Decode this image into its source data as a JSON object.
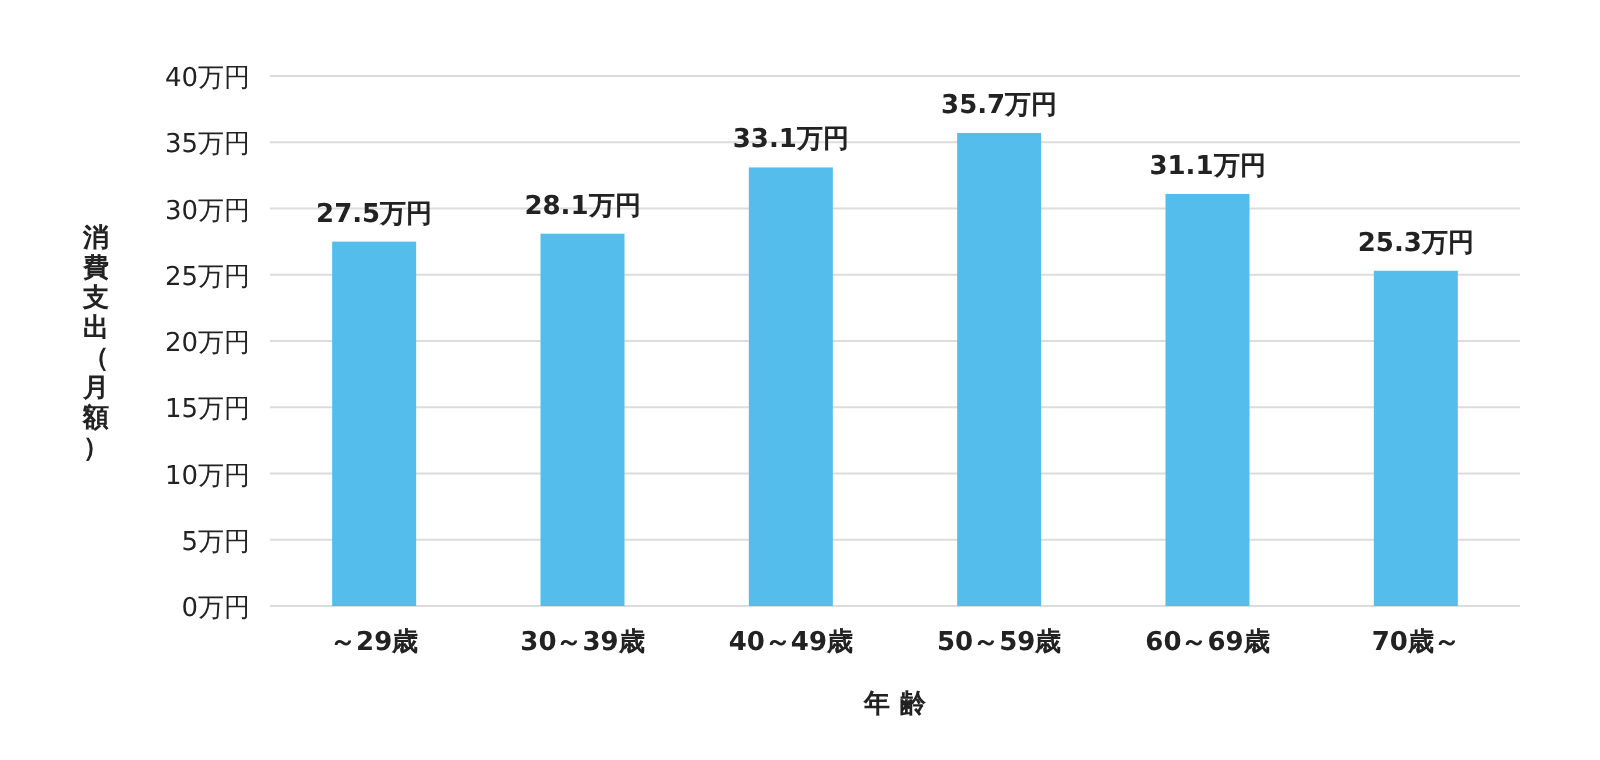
{
  "chart_data": {
    "type": "bar",
    "xlabel": "年 齢",
    "ylabel": "消費支出（月額）",
    "categories": [
      "～29歳",
      "30～39歳",
      "40～49歳",
      "50～59歳",
      "60～69歳",
      "70歳～"
    ],
    "values": [
      27.5,
      28.1,
      33.1,
      35.7,
      31.1,
      25.3
    ],
    "value_labels": [
      "27.5万円",
      "28.1万円",
      "33.1万円",
      "35.7万円",
      "31.1万円",
      "25.3万円"
    ],
    "color": "#55bdec",
    "ylim": [
      0,
      40
    ],
    "yticks": [
      {
        "value": 0,
        "label": "0万円"
      },
      {
        "value": 5,
        "label": "5万円"
      },
      {
        "value": 10,
        "label": "10万円"
      },
      {
        "value": 15,
        "label": "15万円"
      },
      {
        "value": 20,
        "label": "20万円"
      },
      {
        "value": 25,
        "label": "25万円"
      },
      {
        "value": 30,
        "label": "30万円"
      },
      {
        "value": 35,
        "label": "35万円"
      },
      {
        "value": 40,
        "label": "40万円"
      }
    ],
    "grid": "y"
  }
}
